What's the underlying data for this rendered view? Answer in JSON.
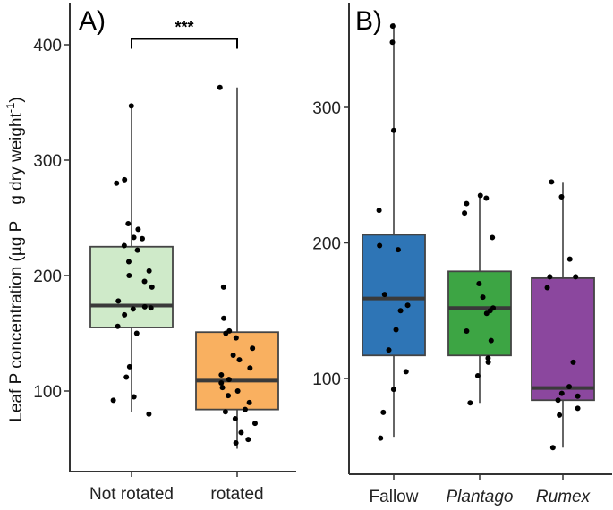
{
  "chart_data": [
    {
      "type": "box",
      "panel_label": "A)",
      "ylabel": "Leaf P concentration (µg P",
      "ylabel_unit_sup": "-1",
      "ylabel_rest": "g dry weight",
      "xlabel": "",
      "ylim": [
        20,
        420
      ],
      "yticks": [
        100,
        200,
        300,
        400
      ],
      "yticklabels": [
        "100",
        "200",
        "300",
        "400"
      ],
      "categories": [
        "Not rotated",
        "rotated"
      ],
      "boxes": [
        {
          "name": "Not rotated",
          "color": "#cfeac9",
          "whisker_low": 82,
          "q1": 155,
          "median": 174,
          "q3": 225,
          "whisker_high": 347
        },
        {
          "name": "rotated",
          "color": "#f9b060",
          "whisker_low": 50,
          "q1": 84,
          "median": 109,
          "q3": 151,
          "whisker_high": 363
        }
      ],
      "points": [
        [
          80,
          92,
          95,
          112,
          121,
          150,
          156,
          166,
          171,
          172,
          173,
          178,
          190,
          195,
          200,
          204,
          212,
          222,
          226,
          232,
          233,
          240,
          245,
          280,
          283,
          347
        ],
        [
          55,
          58,
          64,
          72,
          76,
          82,
          84,
          90,
          96,
          100,
          103,
          107,
          110,
          114,
          120,
          127,
          131,
          137,
          146,
          150,
          152,
          163,
          190,
          363
        ]
      ],
      "significance": {
        "label": "***",
        "between": [
          "Not rotated",
          "rotated"
        ],
        "y": 405
      }
    },
    {
      "type": "box",
      "panel_label": "B)",
      "xlabel": "",
      "ylabel": "",
      "ylim": [
        35,
        370
      ],
      "yticks": [
        100,
        200,
        300
      ],
      "yticklabels": [
        "100",
        "200",
        "300"
      ],
      "categories": [
        "Fallow",
        "Plantago",
        "Rumex"
      ],
      "italic_categories": [
        "Plantago",
        "Rumex"
      ],
      "boxes": [
        {
          "name": "Fallow",
          "color": "#2e75b6",
          "whisker_low": 57,
          "q1": 117,
          "median": 159,
          "q3": 206,
          "whisker_high": 362
        },
        {
          "name": "Plantago",
          "color": "#3da544",
          "whisker_low": 82,
          "q1": 117,
          "median": 152,
          "q3": 179,
          "whisker_high": 235
        },
        {
          "name": "Rumex",
          "color": "#8b479e",
          "whisker_low": 49,
          "q1": 84,
          "median": 93,
          "q3": 174,
          "whisker_high": 245
        }
      ],
      "points": [
        [
          56,
          75,
          92,
          105,
          121,
          136,
          150,
          154,
          162,
          195,
          198,
          224,
          283,
          348,
          360
        ],
        [
          82,
          102,
          112,
          115,
          128,
          135,
          148,
          150,
          152,
          160,
          170,
          204,
          222,
          229,
          233,
          235
        ],
        [
          49,
          73,
          78,
          84,
          87,
          89,
          94,
          112,
          167,
          175,
          175,
          188,
          234,
          245
        ]
      ]
    }
  ]
}
